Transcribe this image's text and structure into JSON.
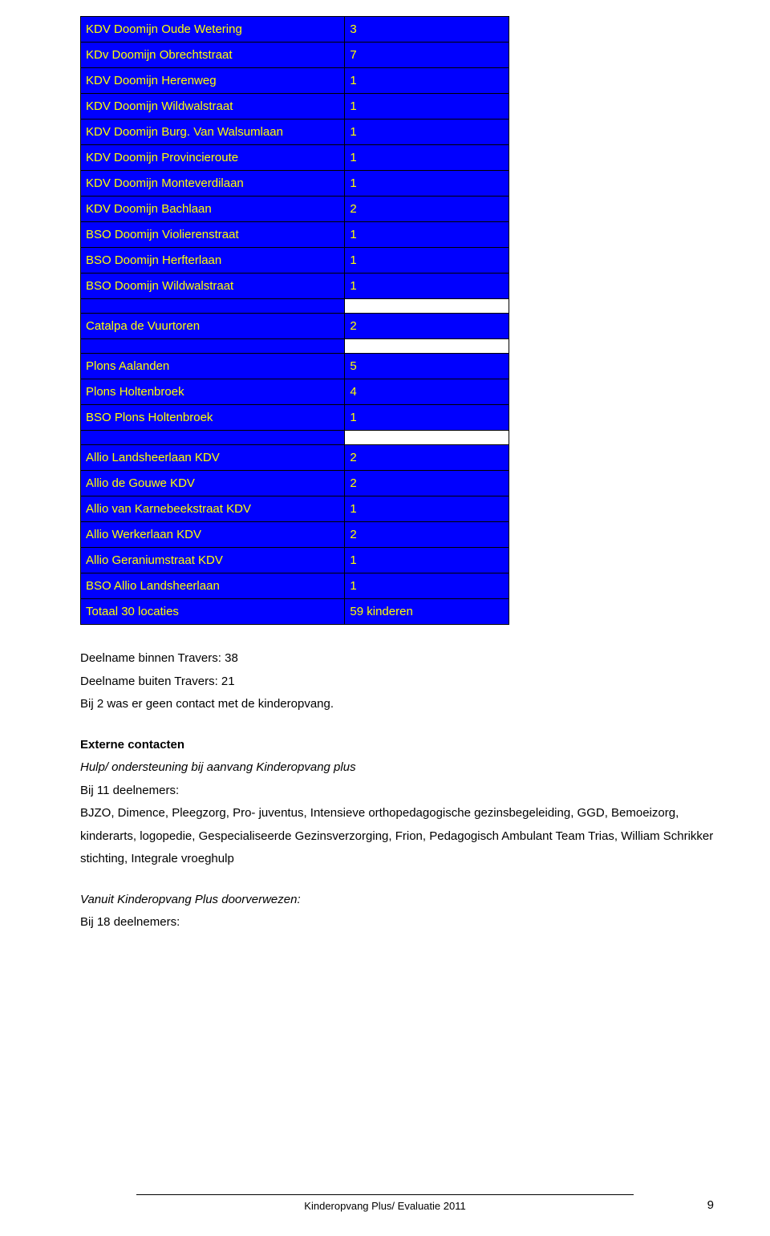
{
  "table": {
    "group1": [
      {
        "name": "KDV Doomijn Oude Wetering",
        "val": "3"
      },
      {
        "name": "KDv Doomijn Obrechtstraat",
        "val": "7"
      },
      {
        "name": "KDV Doomijn Herenweg",
        "val": "1"
      },
      {
        "name": "KDV Doomijn Wildwalstraat",
        "val": "1"
      },
      {
        "name": "KDV Doomijn Burg. Van Walsumlaan",
        "val": "1"
      },
      {
        "name": "KDV Doomijn Provincieroute",
        "val": "1"
      },
      {
        "name": "KDV Doomijn Monteverdilaan",
        "val": "1"
      },
      {
        "name": "KDV Doomijn Bachlaan",
        "val": "2"
      },
      {
        "name": "BSO Doomijn Violierenstraat",
        "val": "1"
      },
      {
        "name": "BSO Doomijn Herfterlaan",
        "val": "1"
      },
      {
        "name": "BSO Doomijn Wildwalstraat",
        "val": "1"
      }
    ],
    "group2": [
      {
        "name": "Catalpa de Vuurtoren",
        "val": "2"
      }
    ],
    "group3": [
      {
        "name": "Plons Aalanden",
        "val": "5"
      },
      {
        "name": "Plons Holtenbroek",
        "val": "4"
      },
      {
        "name": "BSO Plons Holtenbroek",
        "val": "1"
      }
    ],
    "group4": [
      {
        "name": "Allio Landsheerlaan KDV",
        "val": "2"
      },
      {
        "name": "Allio de Gouwe KDV",
        "val": "2"
      },
      {
        "name": "Allio van Karnebeekstraat KDV",
        "val": "1"
      },
      {
        "name": "Allio Werkerlaan KDV",
        "val": "2"
      },
      {
        "name": "Allio Geraniumstraat KDV",
        "val": "1"
      },
      {
        "name": "BSO Allio Landsheerlaan",
        "val": "1"
      },
      {
        "name": "Totaal 30 locaties",
        "val": "59 kinderen"
      }
    ]
  },
  "text": {
    "p1_l1": "Deelname binnen Travers: 38",
    "p1_l2": "Deelname buiten Travers: 21",
    "p1_l3": "Bij 2 was er geen contact met de kinderopvang.",
    "h2": "Externe contacten",
    "p2_l1": "Hulp/ ondersteuning bij aanvang Kinderopvang plus",
    "p2_l2": "Bij 11 deelnemers:",
    "p2_l3": "BJZO, Dimence, Pleegzorg, Pro- juventus, Intensieve orthopedagogische gezinsbegeleiding, GGD, Bemoeizorg, kinderarts, logopedie, Gespecialiseerde Gezinsverzorging, Frion, Pedagogisch Ambulant Team Trias, William Schrikker stichting, Integrale vroeghulp",
    "p3_l1": "Vanuit Kinderopvang Plus doorverwezen:",
    "p3_l2": "Bij 18 deelnemers:"
  },
  "footer": {
    "text": "Kinderopvang Plus/ Evaluatie 2011",
    "page": "9"
  }
}
